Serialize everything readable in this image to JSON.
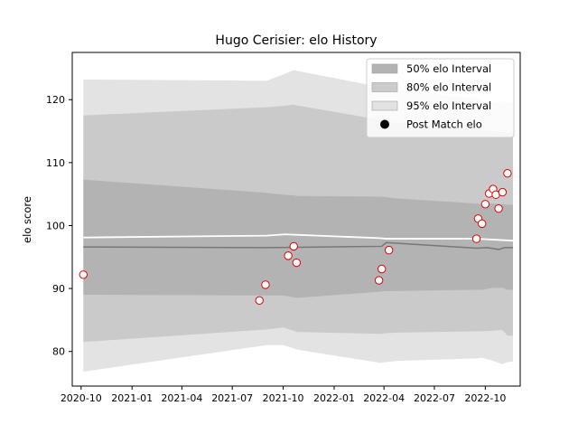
{
  "chart_data": {
    "type": "line",
    "title": "Hugo Cerisier: elo History",
    "xlabel": "",
    "ylabel": "elo score",
    "xlim": [
      "2020-09-15",
      "2022-12-03"
    ],
    "ylim": [
      74.5,
      127.5
    ],
    "x_ticks": [
      "2020-10",
      "2021-01",
      "2021-04",
      "2021-07",
      "2021-10",
      "2022-01",
      "2022-04",
      "2022-07",
      "2022-10"
    ],
    "y_ticks": [
      80,
      90,
      100,
      110,
      120
    ],
    "grid": false,
    "legend_position": "top-right",
    "legend": [
      {
        "label": "50% elo Interval",
        "kind": "band",
        "color": "#b3b3b3"
      },
      {
        "label": "80% elo Interval",
        "kind": "band",
        "color": "#cbcbcb"
      },
      {
        "label": "95% elo Interval",
        "kind": "band",
        "color": "#e2e2e2"
      },
      {
        "label": "Post Match elo",
        "kind": "marker",
        "color": "#000000"
      }
    ],
    "band_dates": [
      "2020-10-05",
      "2021-09-01",
      "2021-10-01",
      "2021-10-20",
      "2021-10-25",
      "2022-03-25",
      "2022-04-05",
      "2022-04-25",
      "2022-09-15",
      "2022-09-25",
      "2022-10-15",
      "2022-11-01",
      "2022-11-10",
      "2022-11-20"
    ],
    "bands": {
      "95": {
        "upper": [
          123.2,
          123.0,
          124.0,
          124.7,
          124.6,
          122.0,
          121.8,
          121.5,
          120.2,
          119.8,
          119.5,
          119.7,
          119.5,
          119.5
        ],
        "lower": [
          76.8,
          81.0,
          81.0,
          80.5,
          80.3,
          78.2,
          78.3,
          78.5,
          78.9,
          79.0,
          78.5,
          78.0,
          78.3,
          78.4
        ]
      },
      "80": {
        "upper": [
          117.5,
          118.8,
          119.0,
          119.2,
          119.1,
          116.8,
          116.6,
          116.3,
          115.5,
          115.3,
          115.0,
          114.9,
          114.7,
          114.7
        ],
        "lower": [
          81.5,
          83.5,
          83.8,
          83.3,
          83.1,
          82.8,
          82.9,
          83.0,
          83.2,
          83.2,
          83.3,
          83.4,
          82.5,
          82.5
        ]
      },
      "50": {
        "upper": [
          107.3,
          105.2,
          104.9,
          104.8,
          104.7,
          104.6,
          104.5,
          104.3,
          103.5,
          103.4,
          103.5,
          103.4,
          103.3,
          103.3
        ],
        "lower": [
          89.0,
          88.9,
          88.9,
          88.6,
          88.5,
          89.5,
          89.6,
          89.6,
          89.8,
          89.8,
          90.1,
          90.1,
          89.8,
          89.8
        ]
      }
    },
    "series": [
      {
        "kind": "line",
        "color": "#ffffff",
        "x": [
          "2020-10-05",
          "2021-09-01",
          "2021-10-05",
          "2022-03-25",
          "2022-04-05",
          "2022-09-15",
          "2022-11-20"
        ],
        "values": [
          98.1,
          98.4,
          98.6,
          98.0,
          97.9,
          97.9,
          97.6
        ]
      },
      {
        "kind": "line",
        "color": "#777777",
        "x": [
          "2020-10-05",
          "2021-09-01",
          "2022-03-28",
          "2022-04-05",
          "2022-09-15",
          "2022-10-05",
          "2022-10-25",
          "2022-11-05",
          "2022-11-20"
        ],
        "values": [
          96.6,
          96.5,
          96.7,
          97.3,
          96.4,
          96.5,
          96.2,
          96.5,
          96.5
        ]
      },
      {
        "name": "Post Match elo",
        "kind": "scatter",
        "x": [
          "2020-10-05",
          "2021-08-19",
          "2021-08-30",
          "2021-10-10",
          "2021-10-20",
          "2021-10-25",
          "2022-03-23",
          "2022-03-28",
          "2022-04-10",
          "2022-09-15",
          "2022-09-18",
          "2022-09-25",
          "2022-10-01",
          "2022-10-08",
          "2022-10-15",
          "2022-10-20",
          "2022-10-25",
          "2022-11-01",
          "2022-11-10"
        ],
        "values": [
          92.2,
          88.1,
          90.6,
          95.2,
          96.7,
          94.1,
          91.3,
          93.1,
          96.1,
          97.9,
          101.1,
          100.3,
          103.4,
          105.1,
          105.8,
          104.9,
          102.7,
          105.3,
          108.3
        ]
      }
    ]
  }
}
